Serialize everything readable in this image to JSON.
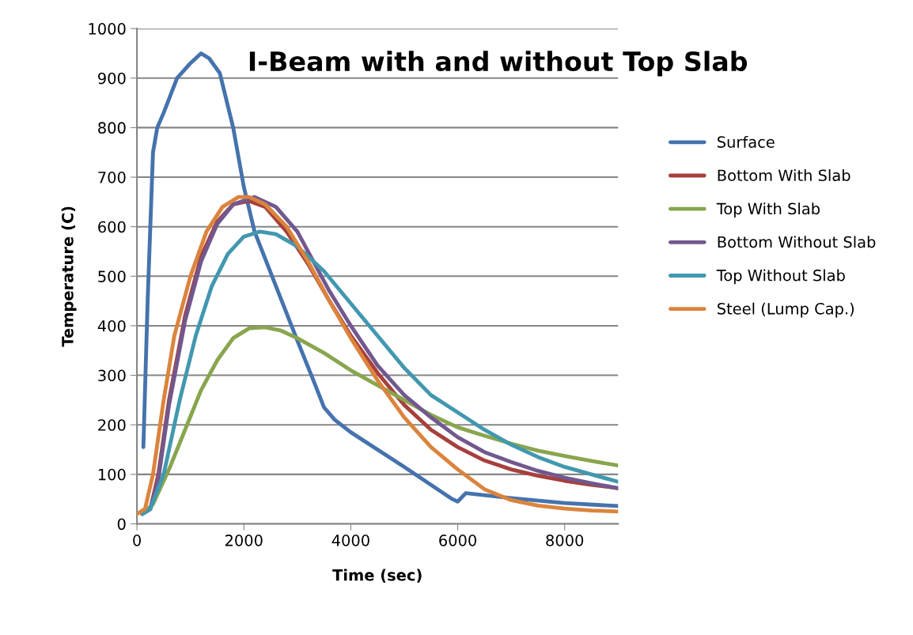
{
  "chart_data": {
    "type": "line",
    "title": "I-Beam with and without Top Slab",
    "xlabel": "Time (sec)",
    "ylabel": "Temperature (C)",
    "xlim": [
      0,
      9000
    ],
    "xticks": [
      0,
      2000,
      4000,
      6000,
      8000
    ],
    "ylim": [
      0,
      1000
    ],
    "yticks": [
      0,
      100,
      200,
      300,
      400,
      500,
      600,
      700,
      800,
      900,
      1000
    ],
    "grid": "y",
    "legend": "right",
    "marker": "none",
    "line_style": "solid",
    "series": [
      {
        "name": "Surface",
        "color": "#4573ad",
        "x": [
          120,
          200,
          300,
          380,
          500,
          750,
          1000,
          1200,
          1350,
          1550,
          1800,
          2000,
          2200,
          2600,
          3000,
          3300,
          3500,
          3700,
          4000,
          5000,
          5900,
          6000,
          6150,
          7000,
          8000,
          9000
        ],
        "values": [
          155,
          450,
          750,
          800,
          830,
          900,
          930,
          950,
          940,
          910,
          800,
          680,
          590,
          480,
          370,
          290,
          235,
          210,
          185,
          115,
          50,
          45,
          62,
          52,
          42,
          36
        ]
      },
      {
        "name": "Bottom With Slab",
        "color": "#a7403d",
        "x": [
          100,
          250,
          400,
          600,
          900,
          1200,
          1500,
          1800,
          2100,
          2400,
          2800,
          3200,
          3600,
          4000,
          4500,
          5000,
          5500,
          6000,
          6500,
          7000,
          7500,
          8000,
          8500,
          9000
        ],
        "values": [
          20,
          30,
          100,
          250,
          420,
          540,
          610,
          645,
          652,
          640,
          590,
          525,
          450,
          380,
          305,
          240,
          190,
          155,
          128,
          110,
          97,
          87,
          79,
          72
        ]
      },
      {
        "name": "Top With Slab",
        "color": "#89a54e",
        "x": [
          150,
          300,
          600,
          900,
          1200,
          1500,
          1800,
          2100,
          2400,
          2700,
          3000,
          3500,
          4000,
          4500,
          5000,
          5500,
          6000,
          6500,
          7000,
          7500,
          8000,
          8500,
          9000
        ],
        "values": [
          25,
          40,
          110,
          190,
          270,
          330,
          375,
          395,
          397,
          390,
          375,
          345,
          310,
          280,
          250,
          220,
          195,
          178,
          162,
          148,
          137,
          127,
          118
        ]
      },
      {
        "name": "Bottom Without Slab",
        "color": "#71588f",
        "x": [
          100,
          250,
          400,
          600,
          900,
          1200,
          1500,
          1800,
          2200,
          2600,
          3000,
          3600,
          4000,
          4500,
          5000,
          5500,
          6000,
          6500,
          7000,
          7500,
          8000,
          8500,
          9000
        ],
        "values": [
          20,
          30,
          90,
          240,
          410,
          530,
          605,
          645,
          660,
          640,
          590,
          470,
          400,
          320,
          260,
          215,
          175,
          145,
          125,
          107,
          93,
          82,
          72
        ]
      },
      {
        "name": "Top Without Slab",
        "color": "#4198af",
        "x": [
          100,
          250,
          500,
          800,
          1100,
          1400,
          1700,
          2000,
          2300,
          2600,
          3000,
          3500,
          4000,
          4500,
          5000,
          5500,
          6000,
          6500,
          7000,
          7500,
          8000,
          8500,
          9000
        ],
        "values": [
          20,
          30,
          100,
          250,
          380,
          480,
          545,
          580,
          590,
          585,
          560,
          510,
          445,
          380,
          315,
          260,
          225,
          190,
          160,
          135,
          115,
          100,
          85
        ]
      },
      {
        "name": "Steel (Lump Cap.)",
        "color": "#db843d",
        "x": [
          0,
          150,
          300,
          500,
          700,
          1000,
          1300,
          1600,
          1900,
          2100,
          2400,
          2800,
          3200,
          3600,
          4000,
          4500,
          5000,
          5500,
          6000,
          6500,
          7000,
          7500,
          8000,
          8500,
          9000
        ],
        "values": [
          20,
          30,
          100,
          250,
          380,
          500,
          590,
          640,
          660,
          660,
          645,
          600,
          530,
          450,
          375,
          290,
          215,
          155,
          110,
          70,
          48,
          37,
          31,
          27,
          25
        ]
      }
    ]
  }
}
